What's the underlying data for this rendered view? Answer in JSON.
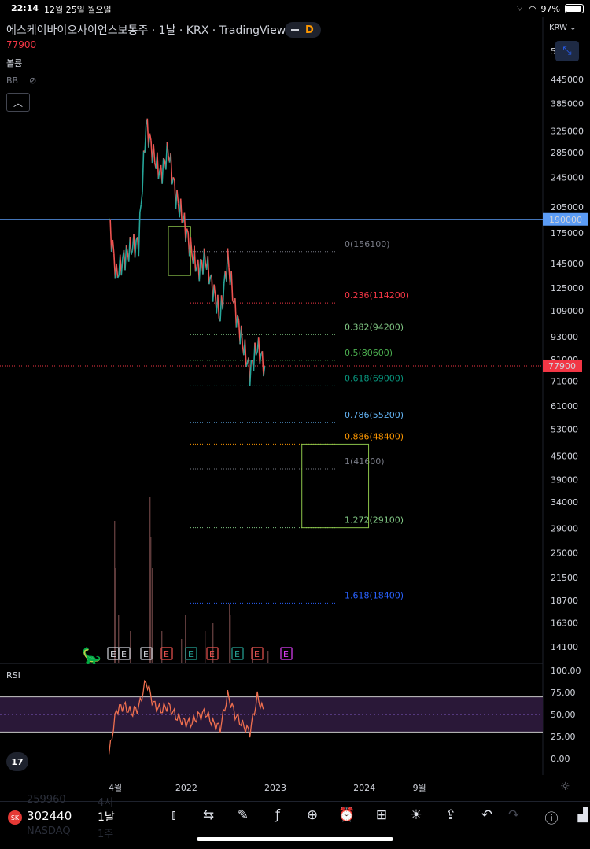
{
  "status_bar": {
    "time": "22:14",
    "date": "12월 25일 월요일",
    "battery": "97%"
  },
  "header": {
    "title": "에스케이바이오사이언스보통주 · 1날 · KRX · TradingView",
    "last_price": "77900",
    "volume_label": "볼륨",
    "bb_label": "BB",
    "interval_badge": "D",
    "currency": "KRW"
  },
  "rsi_label": "RSI",
  "tv_logo": "17",
  "toolbar": {
    "symbol": "302440",
    "interval": "1날",
    "ghost_symbol_1": "259960",
    "ghost_text_1": "4시",
    "ghost_symbol_2": "NASDAQ",
    "ghost_text_2": "1주",
    "icons": [
      "candles-icon",
      "compare-icon",
      "draw-icon",
      "indicators-icon",
      "add-icon",
      "alert-icon",
      "layout-icon",
      "ideas-icon",
      "share-icon",
      "undo-icon",
      "redo-icon",
      "info-icon",
      "chart-type-icon"
    ]
  },
  "colors": {
    "up": "#26a69a",
    "down": "#ef5350",
    "price_line": "#f23645",
    "hline": "#5b9cf6",
    "box": "#8bc34a",
    "rsi_band": "#2a1838"
  },
  "chart_data": [
    {
      "type": "line",
      "title": "",
      "scale": "log",
      "y_ticks": [
        14100,
        16300,
        18700,
        21500,
        25000,
        29000,
        34000,
        39000,
        45000,
        53000,
        61000,
        71000,
        81000,
        93000,
        109000,
        125000,
        145000,
        175000,
        205000,
        245000,
        285000,
        325000,
        385000,
        445000
      ],
      "y_tick_labels": [
        "14100",
        "16300",
        "18700",
        "21500",
        "25000",
        "29000",
        "34000",
        "39000",
        "45000",
        "53000",
        "61000",
        "71000",
        "81000",
        "93000",
        "109000",
        "125000",
        "145000",
        "175000",
        "205000",
        "245000",
        "285000",
        "325000",
        "385000",
        "445000"
      ],
      "top_tick_partial": "5",
      "x_labels": [
        "4월",
        "2022",
        "2023",
        "2024",
        "9월"
      ],
      "x_dates": [
        "2021-04",
        "2022-01",
        "2023-01",
        "2024-01",
        "2024-09"
      ],
      "series": [
        {
          "name": "",
          "x": [
            "2021-03",
            "2021-04",
            "2021-05",
            "2021-06",
            "2021-07",
            "2021-08",
            "2021-09",
            "2021-10",
            "2021-11",
            "2021-12",
            "2022-01",
            "2022-02",
            "2022-03",
            "2022-04",
            "2022-05",
            "2022-06",
            "2022-07",
            "2022-08",
            "2022-09",
            "2022-10",
            "2022-11",
            "2022-12"
          ],
          "values": [
            190000,
            135000,
            150000,
            160000,
            165000,
            340000,
            280000,
            250000,
            290000,
            220000,
            190000,
            160000,
            140000,
            150000,
            125000,
            105000,
            150000,
            110000,
            90000,
            75000,
            88000,
            77900
          ]
        }
      ],
      "horizontal_line": {
        "value": 190000,
        "label": "190000"
      },
      "last_price": {
        "value": 77900,
        "label": "77900"
      },
      "fib_levels": [
        {
          "label": "0(156100)",
          "value": 156100,
          "color": "#787b86"
        },
        {
          "label": "0.236(114200)",
          "value": 114200,
          "color": "#f23645"
        },
        {
          "label": "0.382(94200)",
          "value": 94200,
          "color": "#81c784"
        },
        {
          "label": "0.5(80600)",
          "value": 80600,
          "color": "#4caf50"
        },
        {
          "label": "0.618(69000)",
          "value": 69000,
          "color": "#089981"
        },
        {
          "label": "0.786(55200)",
          "value": 55200,
          "color": "#64b5f6"
        },
        {
          "label": "0.886(48400)",
          "value": 48400,
          "color": "#ff9800"
        },
        {
          "label": "1(41600)",
          "value": 41600,
          "color": "#787b86"
        },
        {
          "label": "1.272(29100)",
          "value": 29100,
          "color": "#81c784"
        },
        {
          "label": "1.618(18400)",
          "value": 18400,
          "color": "#2962ff"
        }
      ],
      "boxes": [
        {
          "x0": "2021-11",
          "x1": "2022-02",
          "y0": 135000,
          "y1": 182000
        },
        {
          "x0": "2023-05",
          "x1": "2024-02",
          "y0": 29100,
          "y1": 48400
        }
      ],
      "earnings_markers": [
        "E",
        "E",
        "E",
        "E",
        "E",
        "E",
        "E",
        "E",
        "E",
        "E"
      ]
    },
    {
      "type": "line",
      "title": "RSI",
      "y_ticks": [
        0,
        25,
        50,
        75,
        100
      ],
      "y_tick_labels": [
        "0.00",
        "25.00",
        "50.00",
        "75.00",
        "100.00"
      ],
      "upper_band": 70,
      "lower_band": 30,
      "series": [
        {
          "name": "",
          "x": [
            "2021-03",
            "2021-04",
            "2021-05",
            "2021-06",
            "2021-07",
            "2021-08",
            "2021-09",
            "2021-10",
            "2021-11",
            "2021-12",
            "2022-01",
            "2022-02",
            "2022-03",
            "2022-04",
            "2022-05",
            "2022-06",
            "2022-07",
            "2022-08",
            "2022-09",
            "2022-10",
            "2022-11",
            "2022-12"
          ],
          "values": [
            5,
            55,
            60,
            52,
            58,
            88,
            62,
            55,
            60,
            48,
            42,
            40,
            48,
            52,
            40,
            35,
            72,
            50,
            38,
            30,
            70,
            50
          ]
        }
      ]
    }
  ]
}
